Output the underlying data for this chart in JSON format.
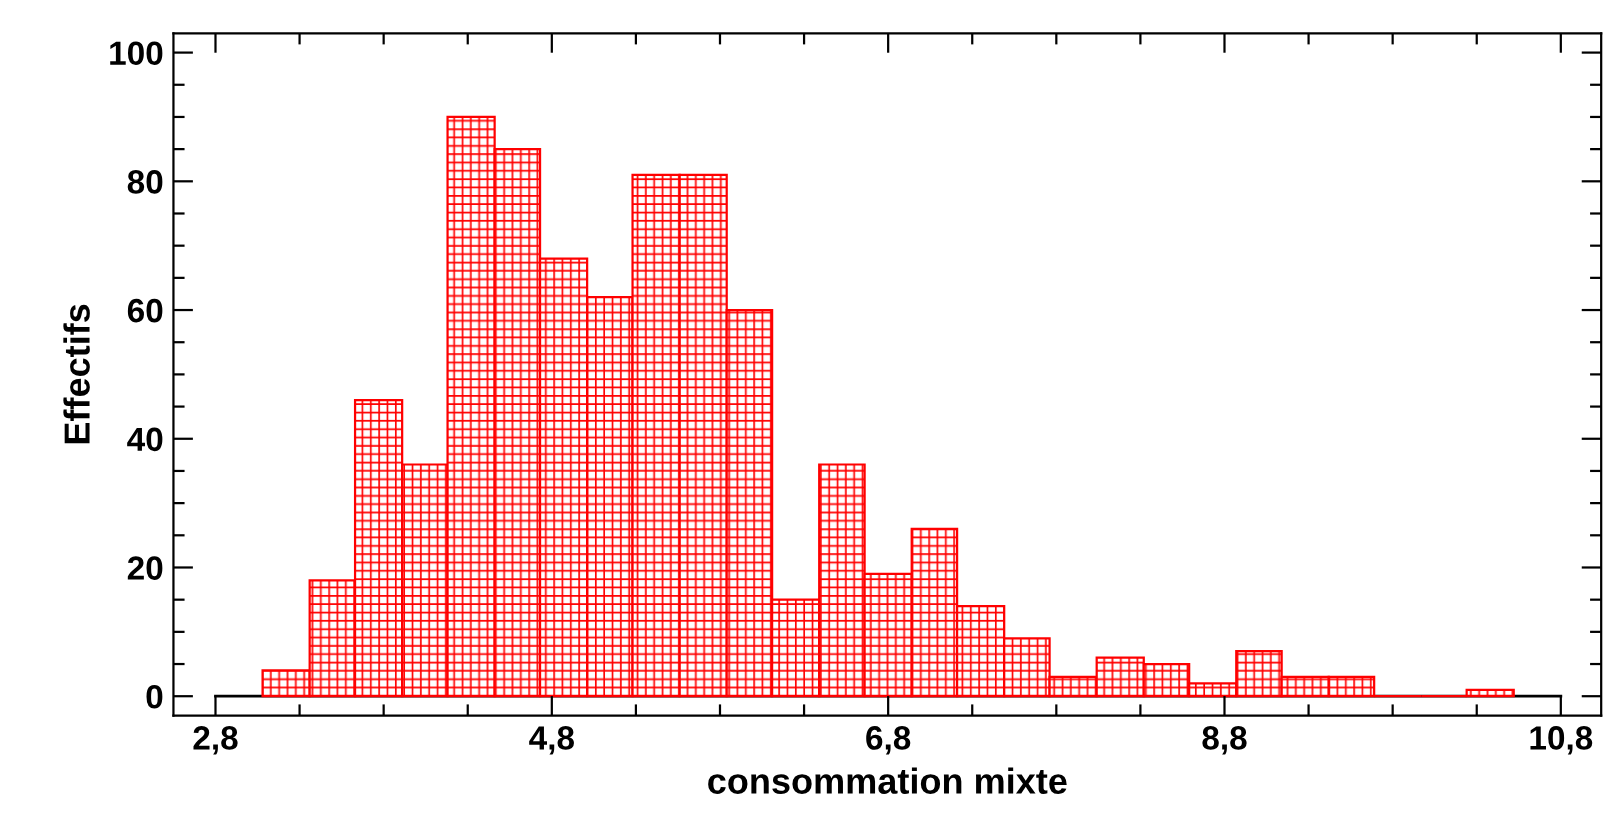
{
  "chart_data": {
    "type": "histogram",
    "xlabel": "consommation mixte",
    "ylabel": "Effectifs",
    "bins": [
      3.08,
      3.36,
      3.63,
      3.91,
      4.18,
      4.46,
      4.73,
      5.01,
      5.28,
      5.56,
      5.84,
      6.11,
      6.39,
      6.66,
      6.94,
      7.21,
      7.49,
      7.76,
      8.04,
      8.32,
      8.59,
      8.87,
      9.14,
      9.42,
      9.69,
      9.97,
      10.24,
      10.52
    ],
    "values": [
      4,
      18,
      46,
      36,
      90,
      85,
      68,
      62,
      81,
      81,
      60,
      15,
      36,
      19,
      26,
      14,
      9,
      3,
      6,
      5,
      2,
      7,
      3,
      3,
      0,
      0,
      1
    ],
    "color": "#ff0000",
    "xlim": [
      2.55,
      11.04
    ],
    "ylim": [
      -3,
      103
    ],
    "xticks": [
      {
        "value": 2.8,
        "label": "2,8"
      },
      {
        "value": 3.3,
        "label": null
      },
      {
        "value": 3.8,
        "label": null
      },
      {
        "value": 4.3,
        "label": null
      },
      {
        "value": 4.8,
        "label": "4,8"
      },
      {
        "value": 5.3,
        "label": null
      },
      {
        "value": 5.8,
        "label": null
      },
      {
        "value": 6.3,
        "label": null
      },
      {
        "value": 6.8,
        "label": "6,8"
      },
      {
        "value": 7.3,
        "label": null
      },
      {
        "value": 7.8,
        "label": null
      },
      {
        "value": 8.3,
        "label": null
      },
      {
        "value": 8.8,
        "label": "8,8"
      },
      {
        "value": 9.3,
        "label": null
      },
      {
        "value": 9.8,
        "label": null
      },
      {
        "value": 10.3,
        "label": null
      },
      {
        "value": 10.8,
        "label": "10,8"
      }
    ],
    "yticks": [
      0,
      {
        "value": 5,
        "label": null
      },
      {
        "value": 10,
        "label": null
      },
      {
        "value": 15,
        "label": null
      },
      20,
      {
        "value": 25,
        "label": null
      },
      {
        "value": 30,
        "label": null
      },
      {
        "value": 35,
        "label": null
      },
      40,
      {
        "value": 45,
        "label": null
      },
      {
        "value": 50,
        "label": null
      },
      {
        "value": 55,
        "label": null
      },
      60,
      {
        "value": 65,
        "label": null
      },
      {
        "value": 70,
        "label": null
      },
      {
        "value": 75,
        "label": null
      },
      80,
      {
        "value": 85,
        "label": null
      },
      {
        "value": 90,
        "label": null
      },
      {
        "value": 95,
        "label": null
      },
      100
    ],
    "ref_lines": [
      {
        "axis": "y",
        "value": 0,
        "color": "#000000"
      }
    ],
    "grid": false
  }
}
